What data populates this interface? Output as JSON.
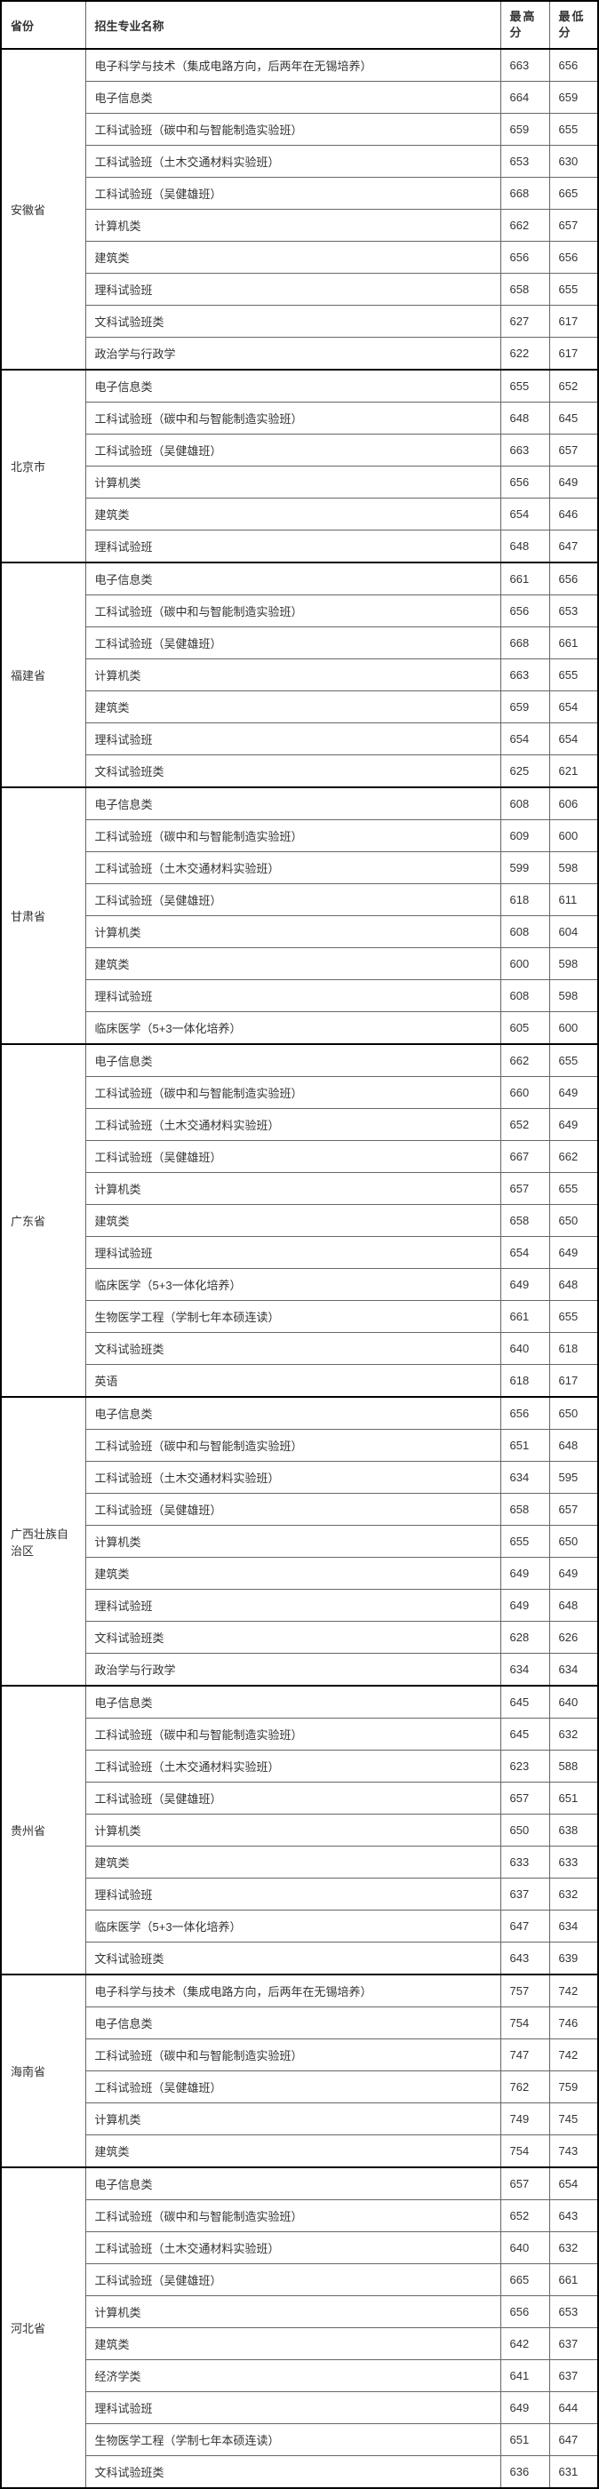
{
  "table": {
    "header": {
      "province": "省份",
      "major": "招生专业名称",
      "max": "最高分",
      "min": "最低分"
    },
    "groups": [
      {
        "province": "安徽省",
        "rows": [
          {
            "major": "电子科学与技术（集成电路方向，后两年在无锡培养）",
            "max": "663",
            "min": "656"
          },
          {
            "major": "电子信息类",
            "max": "664",
            "min": "659"
          },
          {
            "major": "工科试验班（碳中和与智能制造实验班）",
            "max": "659",
            "min": "655"
          },
          {
            "major": "工科试验班（土木交通材料实验班）",
            "max": "653",
            "min": "630"
          },
          {
            "major": "工科试验班（吴健雄班）",
            "max": "668",
            "min": "665"
          },
          {
            "major": "计算机类",
            "max": "662",
            "min": "657"
          },
          {
            "major": "建筑类",
            "max": "656",
            "min": "656"
          },
          {
            "major": "理科试验班",
            "max": "658",
            "min": "655"
          },
          {
            "major": "文科试验班类",
            "max": "627",
            "min": "617"
          },
          {
            "major": "政治学与行政学",
            "max": "622",
            "min": "617"
          }
        ]
      },
      {
        "province": "北京市",
        "rows": [
          {
            "major": "电子信息类",
            "max": "655",
            "min": "652"
          },
          {
            "major": "工科试验班（碳中和与智能制造实验班）",
            "max": "648",
            "min": "645"
          },
          {
            "major": "工科试验班（吴健雄班）",
            "max": "663",
            "min": "657"
          },
          {
            "major": "计算机类",
            "max": "656",
            "min": "649"
          },
          {
            "major": "建筑类",
            "max": "654",
            "min": "646"
          },
          {
            "major": "理科试验班",
            "max": "648",
            "min": "647"
          }
        ]
      },
      {
        "province": "福建省",
        "rows": [
          {
            "major": "电子信息类",
            "max": "661",
            "min": "656"
          },
          {
            "major": "工科试验班（碳中和与智能制造实验班）",
            "max": "656",
            "min": "653"
          },
          {
            "major": "工科试验班（吴健雄班）",
            "max": "668",
            "min": "661"
          },
          {
            "major": "计算机类",
            "max": "663",
            "min": "655"
          },
          {
            "major": "建筑类",
            "max": "659",
            "min": "654"
          },
          {
            "major": "理科试验班",
            "max": "654",
            "min": "654"
          },
          {
            "major": "文科试验班类",
            "max": "625",
            "min": "621"
          }
        ]
      },
      {
        "province": "甘肃省",
        "rows": [
          {
            "major": "电子信息类",
            "max": "608",
            "min": "606"
          },
          {
            "major": "工科试验班（碳中和与智能制造实验班）",
            "max": "609",
            "min": "600"
          },
          {
            "major": "工科试验班（土木交通材料实验班）",
            "max": "599",
            "min": "598"
          },
          {
            "major": "工科试验班（吴健雄班）",
            "max": "618",
            "min": "611"
          },
          {
            "major": "计算机类",
            "max": "608",
            "min": "604"
          },
          {
            "major": "建筑类",
            "max": "600",
            "min": "598"
          },
          {
            "major": "理科试验班",
            "max": "608",
            "min": "598"
          },
          {
            "major": "临床医学（5+3一体化培养）",
            "max": "605",
            "min": "600"
          }
        ]
      },
      {
        "province": "广东省",
        "rows": [
          {
            "major": "电子信息类",
            "max": "662",
            "min": "655"
          },
          {
            "major": "工科试验班（碳中和与智能制造实验班）",
            "max": "660",
            "min": "649"
          },
          {
            "major": "工科试验班（土木交通材料实验班）",
            "max": "652",
            "min": "649"
          },
          {
            "major": "工科试验班（吴健雄班）",
            "max": "667",
            "min": "662"
          },
          {
            "major": "计算机类",
            "max": "657",
            "min": "655"
          },
          {
            "major": "建筑类",
            "max": "658",
            "min": "650"
          },
          {
            "major": "理科试验班",
            "max": "654",
            "min": "649"
          },
          {
            "major": "临床医学（5+3一体化培养）",
            "max": "649",
            "min": "648"
          },
          {
            "major": "生物医学工程（学制七年本硕连读）",
            "max": "661",
            "min": "655"
          },
          {
            "major": "文科试验班类",
            "max": "640",
            "min": "618"
          },
          {
            "major": "英语",
            "max": "618",
            "min": "617"
          }
        ]
      },
      {
        "province": "广西壮族自治区",
        "rows": [
          {
            "major": "电子信息类",
            "max": "656",
            "min": "650"
          },
          {
            "major": "工科试验班（碳中和与智能制造实验班）",
            "max": "651",
            "min": "648"
          },
          {
            "major": "工科试验班（土木交通材料实验班）",
            "max": "634",
            "min": "595"
          },
          {
            "major": "工科试验班（吴健雄班）",
            "max": "658",
            "min": "657"
          },
          {
            "major": "计算机类",
            "max": "655",
            "min": "650"
          },
          {
            "major": "建筑类",
            "max": "649",
            "min": "649"
          },
          {
            "major": "理科试验班",
            "max": "649",
            "min": "648"
          },
          {
            "major": "文科试验班类",
            "max": "628",
            "min": "626"
          },
          {
            "major": "政治学与行政学",
            "max": "634",
            "min": "634"
          }
        ]
      },
      {
        "province": "贵州省",
        "rows": [
          {
            "major": "电子信息类",
            "max": "645",
            "min": "640"
          },
          {
            "major": "工科试验班（碳中和与智能制造实验班）",
            "max": "645",
            "min": "632"
          },
          {
            "major": "工科试验班（土木交通材料实验班）",
            "max": "623",
            "min": "588"
          },
          {
            "major": "工科试验班（吴健雄班）",
            "max": "657",
            "min": "651"
          },
          {
            "major": "计算机类",
            "max": "650",
            "min": "638"
          },
          {
            "major": "建筑类",
            "max": "633",
            "min": "633"
          },
          {
            "major": "理科试验班",
            "max": "637",
            "min": "632"
          },
          {
            "major": "临床医学（5+3一体化培养）",
            "max": "647",
            "min": "634"
          },
          {
            "major": "文科试验班类",
            "max": "643",
            "min": "639"
          }
        ]
      },
      {
        "province": "海南省",
        "rows": [
          {
            "major": "电子科学与技术（集成电路方向，后两年在无锡培养）",
            "max": "757",
            "min": "742"
          },
          {
            "major": "电子信息类",
            "max": "754",
            "min": "746"
          },
          {
            "major": "工科试验班（碳中和与智能制造实验班）",
            "max": "747",
            "min": "742"
          },
          {
            "major": "工科试验班（吴健雄班）",
            "max": "762",
            "min": "759"
          },
          {
            "major": "计算机类",
            "max": "749",
            "min": "745"
          },
          {
            "major": "建筑类",
            "max": "754",
            "min": "743"
          }
        ]
      },
      {
        "province": "河北省",
        "rows": [
          {
            "major": "电子信息类",
            "max": "657",
            "min": "654"
          },
          {
            "major": "工科试验班（碳中和与智能制造实验班）",
            "max": "652",
            "min": "643"
          },
          {
            "major": "工科试验班（土木交通材料实验班）",
            "max": "640",
            "min": "632"
          },
          {
            "major": "工科试验班（吴健雄班）",
            "max": "665",
            "min": "661"
          },
          {
            "major": "计算机类",
            "max": "656",
            "min": "653"
          },
          {
            "major": "建筑类",
            "max": "642",
            "min": "637"
          },
          {
            "major": "经济学类",
            "max": "641",
            "min": "637"
          },
          {
            "major": "理科试验班",
            "max": "649",
            "min": "644"
          },
          {
            "major": "生物医学工程（学制七年本硕连读）",
            "max": "651",
            "min": "647"
          },
          {
            "major": "文科试验班类",
            "max": "636",
            "min": "631"
          }
        ]
      }
    ]
  }
}
